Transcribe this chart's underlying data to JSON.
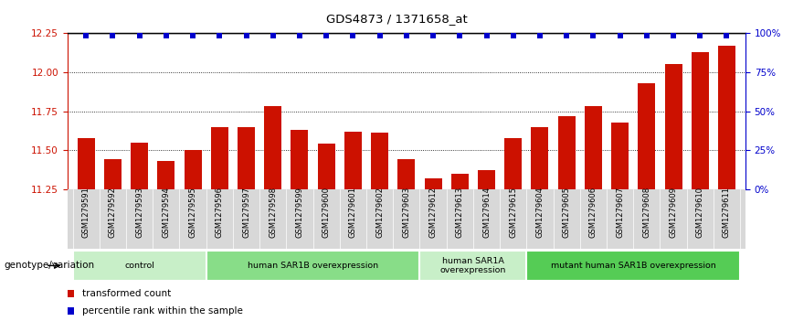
{
  "title": "GDS4873 / 1371658_at",
  "samples": [
    "GSM1279591",
    "GSM1279592",
    "GSM1279593",
    "GSM1279594",
    "GSM1279595",
    "GSM1279596",
    "GSM1279597",
    "GSM1279598",
    "GSM1279599",
    "GSM1279600",
    "GSM1279601",
    "GSM1279602",
    "GSM1279603",
    "GSM1279612",
    "GSM1279613",
    "GSM1279614",
    "GSM1279615",
    "GSM1279604",
    "GSM1279605",
    "GSM1279606",
    "GSM1279607",
    "GSM1279608",
    "GSM1279609",
    "GSM1279610",
    "GSM1279611"
  ],
  "values": [
    11.58,
    11.44,
    11.55,
    11.43,
    11.5,
    11.65,
    11.65,
    11.78,
    11.63,
    11.54,
    11.62,
    11.61,
    11.44,
    11.32,
    11.35,
    11.37,
    11.58,
    11.65,
    11.72,
    11.78,
    11.68,
    11.93,
    12.05,
    12.13,
    12.17
  ],
  "ylim": [
    11.25,
    12.25
  ],
  "yticks": [
    11.25,
    11.5,
    11.75,
    12.0,
    12.25
  ],
  "right_yticks": [
    0,
    25,
    50,
    75,
    100
  ],
  "right_ylim": [
    0,
    100
  ],
  "bar_color": "#cc1100",
  "dot_color": "#0000cc",
  "groups": [
    {
      "label": "control",
      "start": 0,
      "end": 5,
      "color": "#c8efc8"
    },
    {
      "label": "human SAR1B overexpression",
      "start": 5,
      "end": 13,
      "color": "#88dd88"
    },
    {
      "label": "human SAR1A\noverexpression",
      "start": 13,
      "end": 17,
      "color": "#c8efc8"
    },
    {
      "label": "mutant human SAR1B overexpression",
      "start": 17,
      "end": 25,
      "color": "#55cc55"
    }
  ],
  "left_axis_color": "#cc1100",
  "right_axis_color": "#0000cc",
  "legend_items": [
    {
      "label": "transformed count",
      "color": "#cc1100"
    },
    {
      "label": "percentile rank within the sample",
      "color": "#0000cc"
    }
  ],
  "genotype_label": "genotype/variation"
}
